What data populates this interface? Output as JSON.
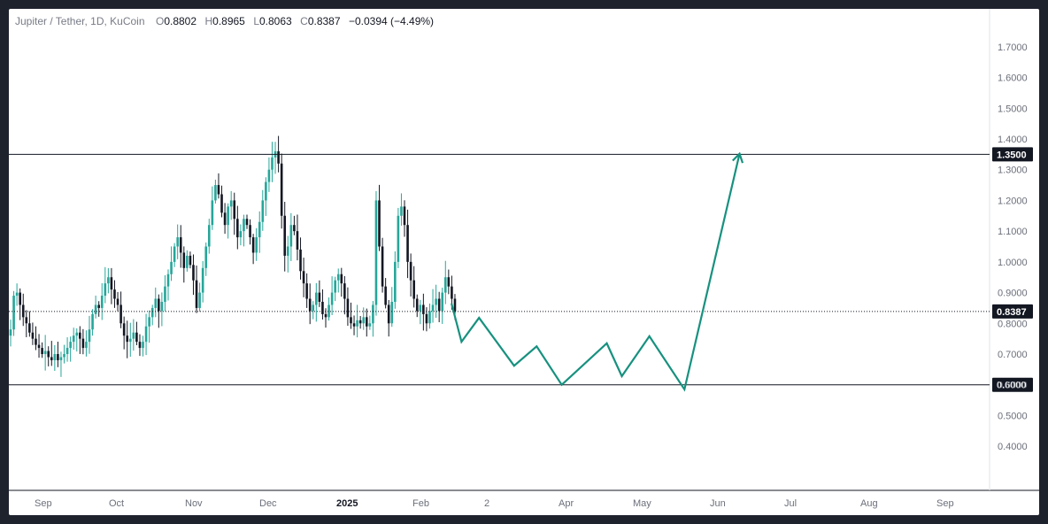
{
  "header": {
    "symbol": "Jupiter / Tether, 1D, KuCoin",
    "open_label": "O",
    "open": "0.8802",
    "high_label": "H",
    "high": "0.8965",
    "low_label": "L",
    "low": "0.8063",
    "close_label": "C",
    "close": "0.8387",
    "change": "−0.0394 (−4.49%)"
  },
  "colors": {
    "up": "#26a69a",
    "down": "#131722",
    "projection": "#17917f",
    "line": "#131722",
    "tag_bg": "#131722"
  },
  "chart_data": {
    "type": "candlestick",
    "title": "Jupiter / Tether, 1D, KuCoin",
    "ylim": [
      0.34,
      1.76
    ],
    "y_ticks": [
      "1.7000",
      "1.6000",
      "1.5000",
      "1.4000",
      "1.3000",
      "1.2000",
      "1.1000",
      "1.0000",
      "0.9000",
      "0.8000",
      "0.7000",
      "0.6000",
      "0.5000",
      "0.4000"
    ],
    "x_ticks": [
      "Sep",
      "Oct",
      "Nov",
      "Dec",
      "2025",
      "Feb",
      "2",
      "Apr",
      "May",
      "Jun",
      "Jul",
      "Aug",
      "Sep"
    ],
    "x_ticks_bold": [
      "2025"
    ],
    "start_date": "2024-08-24",
    "candle_closes": [
      0.78,
      0.89,
      0.9,
      0.86,
      0.82,
      0.8,
      0.77,
      0.75,
      0.73,
      0.72,
      0.7,
      0.71,
      0.69,
      0.68,
      0.7,
      0.68,
      0.69,
      0.7,
      0.72,
      0.74,
      0.76,
      0.77,
      0.75,
      0.72,
      0.74,
      0.78,
      0.83,
      0.86,
      0.85,
      0.89,
      0.93,
      0.95,
      0.91,
      0.88,
      0.86,
      0.8,
      0.76,
      0.74,
      0.75,
      0.77,
      0.74,
      0.72,
      0.74,
      0.79,
      0.82,
      0.85,
      0.88,
      0.84,
      0.87,
      0.92,
      0.96,
      1.0,
      1.05,
      1.08,
      1.03,
      0.98,
      1.02,
      0.99,
      0.94,
      0.85,
      0.9,
      0.98,
      1.05,
      1.12,
      1.2,
      1.25,
      1.22,
      1.16,
      1.12,
      1.18,
      1.2,
      1.14,
      1.08,
      1.1,
      1.14,
      1.12,
      1.08,
      1.03,
      1.08,
      1.13,
      1.2,
      1.26,
      1.3,
      1.34,
      1.36,
      1.32,
      1.15,
      1.02,
      1.05,
      1.12,
      1.1,
      1.04,
      0.97,
      0.93,
      0.88,
      0.84,
      0.86,
      0.9,
      0.87,
      0.83,
      0.82,
      0.86,
      0.9,
      0.94,
      0.96,
      0.93,
      0.88,
      0.82,
      0.8,
      0.79,
      0.81,
      0.8,
      0.82,
      0.79,
      0.8,
      0.86,
      1.2,
      1.05,
      0.92,
      0.86,
      0.8,
      0.87,
      1.0,
      1.15,
      1.18,
      1.12,
      1.0,
      0.94,
      0.88,
      0.84,
      0.86,
      0.83,
      0.8,
      0.84,
      0.86,
      0.88,
      0.84,
      0.9,
      0.95,
      0.92,
      0.88,
      0.8387
    ],
    "levels": [
      {
        "value": 1.35,
        "label": "1.3500"
      },
      {
        "value": 0.6,
        "label": "0.6000"
      }
    ],
    "last_price": {
      "value": 0.8387,
      "label": "0.8387"
    },
    "projection": [
      {
        "date": "2025-02-16",
        "y": 0.865
      },
      {
        "date": "2025-02-20",
        "y": 0.74
      },
      {
        "date": "2025-02-27",
        "y": 0.818
      },
      {
        "date": "2025-03-13",
        "y": 0.662
      },
      {
        "date": "2025-03-22",
        "y": 0.725
      },
      {
        "date": "2025-04-01",
        "y": 0.6
      },
      {
        "date": "2025-04-19",
        "y": 0.735
      },
      {
        "date": "2025-04-25",
        "y": 0.628
      },
      {
        "date": "2025-05-06",
        "y": 0.758
      },
      {
        "date": "2025-05-20",
        "y": 0.585
      },
      {
        "date": "2025-06-11",
        "y": 1.352
      }
    ]
  }
}
